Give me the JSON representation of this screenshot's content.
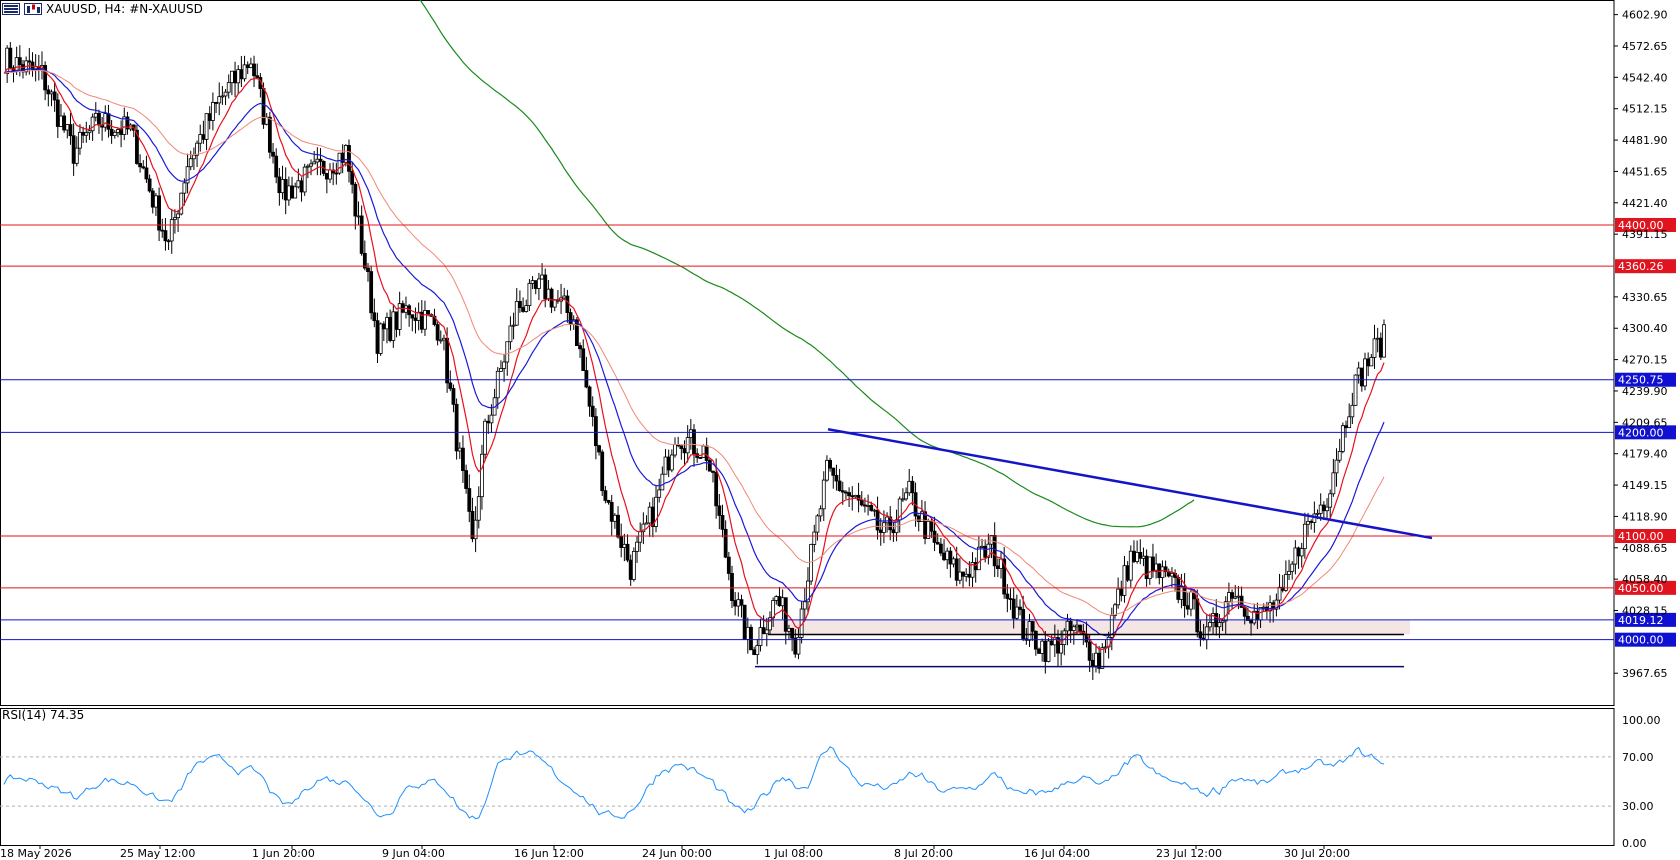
{
  "header": {
    "symbol_title": "XAUUSD, H4:",
    "description": "#N-XAUUSD",
    "icons": [
      "flag-icon",
      "chart-type-icon"
    ]
  },
  "rsi": {
    "label": "RSI(14) 74.35",
    "levels": [
      "100.00",
      "70.00",
      "30.00",
      "0.00"
    ]
  },
  "price_axis": {
    "ticks": [
      "4602.90",
      "4572.65",
      "4542.40",
      "4512.15",
      "4481.90",
      "4451.65",
      "4421.40",
      "4391.15",
      "4330.65",
      "4300.40",
      "4270.15",
      "4239.90",
      "4209.65",
      "4179.40",
      "4149.15",
      "4118.90",
      "4088.65",
      "4058.40",
      "4028.15",
      "3967.65"
    ]
  },
  "levels": [
    {
      "label": "4400.00",
      "price": 4400.0,
      "color": "#e0141e"
    },
    {
      "label": "4360.26",
      "price": 4360.26,
      "color": "#e0141e"
    },
    {
      "label": "4250.75",
      "price": 4250.75,
      "color": "#1010d0"
    },
    {
      "label": "4200.00",
      "price": 4200.0,
      "color": "#1010d0"
    },
    {
      "label": "4100.00",
      "price": 4100.0,
      "color": "#e0141e"
    },
    {
      "label": "4050.00",
      "price": 4050.0,
      "color": "#e0141e"
    },
    {
      "label": "4019.12",
      "price": 4019.12,
      "color": "#1010d0"
    },
    {
      "label": "4000.00",
      "price": 4000.0,
      "color": "#1010d0"
    }
  ],
  "time_axis": {
    "labels": [
      "18 May 2026",
      "25 May 12:00",
      "1 Jun 20:00",
      "9 Jun 04:00",
      "16 Jun 12:00",
      "24 Jun 00:00",
      "1 Jul 08:00",
      "8 Jul 20:00",
      "16 Jul 04:00",
      "23 Jul 12:00",
      "30 Jul 20:00"
    ]
  },
  "colors": {
    "bull": "#000000",
    "bear": "#000000",
    "ma_fast": "#e8101c",
    "ma_mid": "#1a1ad8",
    "ma_slow": "#f08878",
    "ma_long": "#1a8a1a",
    "trendline": "#1515c8",
    "rsi": "#1e90ff"
  },
  "chart_data": {
    "type": "candlestick",
    "symbol": "XAUUSD",
    "timeframe": "H4",
    "price_range": [
      3937,
      4617
    ],
    "close_path": [
      [
        0,
        4560
      ],
      [
        12,
        4545
      ],
      [
        22,
        4470
      ],
      [
        30,
        4500
      ],
      [
        40,
        4490
      ],
      [
        52,
        4380
      ],
      [
        58,
        4460
      ],
      [
        68,
        4520
      ],
      [
        78,
        4560
      ],
      [
        88,
        4430
      ],
      [
        98,
        4450
      ],
      [
        108,
        4470
      ],
      [
        118,
        4290
      ],
      [
        128,
        4320
      ],
      [
        138,
        4300
      ],
      [
        148,
        4090
      ],
      [
        152,
        4200
      ],
      [
        162,
        4320
      ],
      [
        170,
        4340
      ],
      [
        180,
        4310
      ],
      [
        190,
        4140
      ],
      [
        198,
        4070
      ],
      [
        206,
        4130
      ],
      [
        212,
        4200
      ],
      [
        222,
        4180
      ],
      [
        230,
        4050
      ],
      [
        236,
        3990
      ],
      [
        244,
        4040
      ],
      [
        250,
        4000
      ],
      [
        260,
        4160
      ],
      [
        270,
        4130
      ],
      [
        278,
        4100
      ],
      [
        286,
        4140
      ],
      [
        294,
        4090
      ],
      [
        302,
        4060
      ],
      [
        312,
        4090
      ],
      [
        322,
        4010
      ],
      [
        330,
        3990
      ],
      [
        338,
        4010
      ],
      [
        346,
        3980
      ],
      [
        356,
        4080
      ],
      [
        366,
        4060
      ],
      [
        374,
        4040
      ],
      [
        380,
        4000
      ],
      [
        388,
        4050
      ],
      [
        396,
        4020
      ],
      [
        404,
        4040
      ],
      [
        410,
        4100
      ],
      [
        418,
        4140
      ],
      [
        426,
        4240
      ],
      [
        432,
        4275
      ],
      [
        436,
        4290
      ]
    ]
  }
}
